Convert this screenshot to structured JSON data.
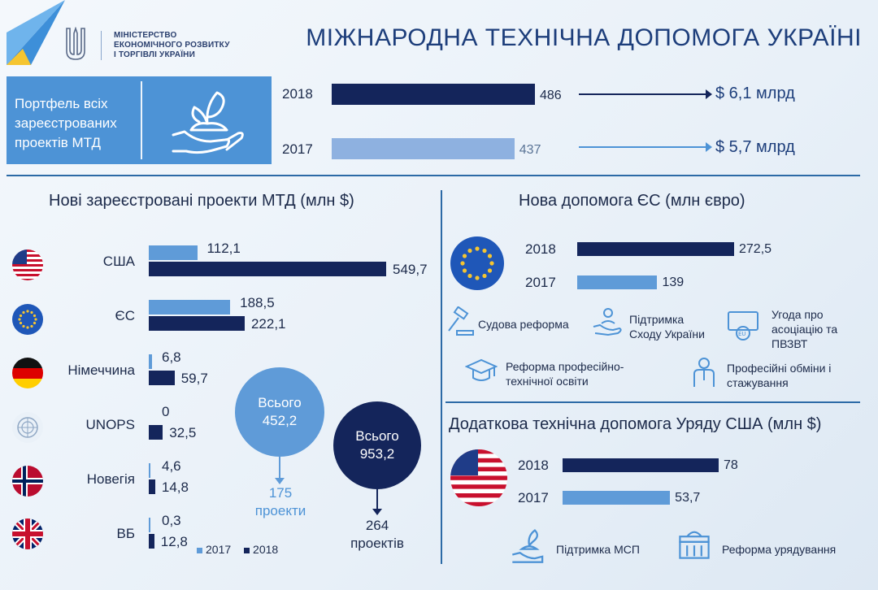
{
  "header": {
    "ministry_lines": [
      "МІНІСТЕРСТВО",
      "ЕКОНОМІЧНОГО РОЗВИТКУ",
      "І ТОРГІВЛІ УКРАЇНИ"
    ],
    "title": "МІЖНАРОДНА ТЕХНІЧНА ДОПОМОГА УКРАЇНІ"
  },
  "portfolio": {
    "label_lines": [
      "Портфель всіх",
      "зареєстрованих",
      "проектів МТД"
    ],
    "rows": [
      {
        "year": "2018",
        "value": 486,
        "value_label": "486",
        "amount": "$ 6,1 млрд"
      },
      {
        "year": "2017",
        "value": 437,
        "value_label": "437",
        "amount": "$ 5,7 млрд"
      }
    ]
  },
  "chart_data": [
    {
      "type": "bar",
      "title": "Нові зареєстровані проекти МТД (млн $)",
      "categories": [
        "США",
        "ЄС",
        "Німеччина",
        "UNOPS",
        "Новегія",
        "ВБ"
      ],
      "series": [
        {
          "name": "2017",
          "values": [
            112.1,
            188.5,
            6.8,
            0,
            4.6,
            0.3
          ],
          "labels": [
            "112,1",
            "188,5",
            "6,8",
            "0",
            "4,6",
            "0,3"
          ]
        },
        {
          "name": "2018",
          "values": [
            549.7,
            222.1,
            59.7,
            32.5,
            14.8,
            12.8
          ],
          "labels": [
            "549,7",
            "222,1",
            "59,7",
            "32,5",
            "14,8",
            "12,8"
          ]
        }
      ],
      "legend": [
        "2017",
        "2018"
      ],
      "totals": [
        {
          "year": "2017",
          "label_lines": [
            "Всього",
            "452,2"
          ],
          "projects_lines": [
            "175",
            "проекти"
          ]
        },
        {
          "year": "2018",
          "label_lines": [
            "Всього",
            "953,2"
          ],
          "projects_lines": [
            "264",
            "проектів"
          ]
        }
      ]
    },
    {
      "type": "bar",
      "title": "Нова допомога ЄС (млн євро)",
      "categories": [
        "2018",
        "2017"
      ],
      "values": [
        272.5,
        139
      ],
      "labels": [
        "272,5",
        "139"
      ]
    },
    {
      "type": "bar",
      "title": "Додаткова технічна допомога Уряду США (млн $)",
      "categories": [
        "2018",
        "2017"
      ],
      "values": [
        78,
        53.7
      ],
      "labels": [
        "78",
        "53,7"
      ]
    }
  ],
  "eu_areas": [
    {
      "icon": "gavel-icon",
      "lines": [
        "Судова реформа"
      ]
    },
    {
      "icon": "hands-support-icon",
      "lines": [
        "Підтримка",
        "Сходу України"
      ]
    },
    {
      "icon": "eu-agreement-icon",
      "lines": [
        "Угода про",
        "асоціацію та",
        "ПВЗВТ"
      ]
    },
    {
      "icon": "graduation-cap-icon",
      "lines": [
        "Реформа професійно-",
        "технічної освіти"
      ]
    },
    {
      "icon": "person-icon",
      "lines": [
        "Професійні обміни і",
        "стажування"
      ]
    }
  ],
  "us_areas": [
    {
      "icon": "plant-hand-icon",
      "label": "Підтримка МСП"
    },
    {
      "icon": "government-building-icon",
      "label": "Реформа урядування"
    }
  ],
  "colors": {
    "dark": "#14255b",
    "light": "#8eb1e0",
    "mid": "#5f9bd8",
    "accent": "#4d93d6"
  }
}
